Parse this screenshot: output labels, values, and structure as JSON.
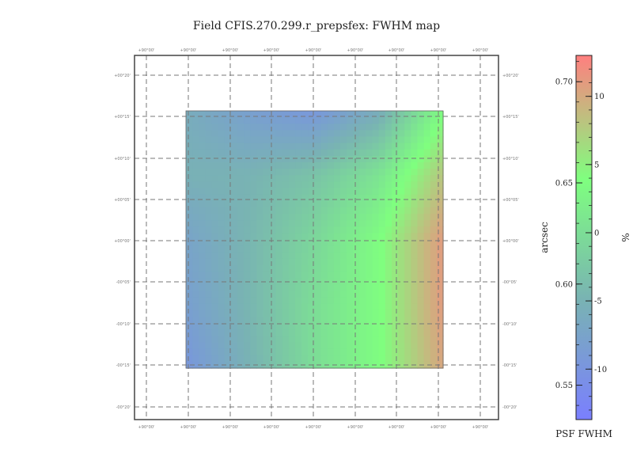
{
  "chart_data": {
    "type": "heatmap",
    "title": "Field CFIS.270.299.r_prepsfex: FWHM map",
    "grid": true,
    "grid_style": "dashed",
    "ra_ticks": [
      "+90°00'",
      "+90°00'",
      "+90°00'",
      "+90°00'",
      "+90°00'",
      "+90°00'",
      "+90°00'",
      "+90°00'",
      "+90°00'"
    ],
    "dec_ticks": [
      "+00°20'",
      "+00°15'",
      "+00°10'",
      "+00°05'",
      "+00°00'",
      "-00°05'",
      "-00°10'",
      "-00°15'",
      "-00°20'"
    ],
    "colorbar": {
      "label": "PSF FWHM",
      "left_axis_label": "arcsec",
      "right_axis_label": "%",
      "left_range": [
        0.533,
        0.713
      ],
      "left_ticks": [
        0.55,
        0.6,
        0.65,
        0.7
      ],
      "left_tick_labels": [
        "0.55",
        "0.60",
        "0.65",
        "0.70"
      ],
      "right_range": [
        -13.7,
        13.0
      ],
      "right_ticks": [
        -10,
        -5,
        0,
        5,
        10
      ],
      "right_tick_labels": [
        "-10",
        "-5",
        "0",
        "5",
        "10"
      ],
      "colormap": [
        "#7a7fff",
        "#79b3b3",
        "#7fff7f",
        "#ff7f7f"
      ]
    },
    "map_grid": {
      "rows": 5,
      "cols": 5,
      "row_order": "top-to-bottom",
      "values": [
        [
          0.585,
          0.57,
          0.56,
          0.585,
          0.65
        ],
        [
          0.59,
          0.592,
          0.605,
          0.63,
          0.68
        ],
        [
          0.575,
          0.595,
          0.62,
          0.65,
          0.7
        ],
        [
          0.57,
          0.595,
          0.625,
          0.65,
          0.7
        ],
        [
          0.56,
          0.592,
          0.625,
          0.65,
          0.695
        ]
      ]
    }
  }
}
